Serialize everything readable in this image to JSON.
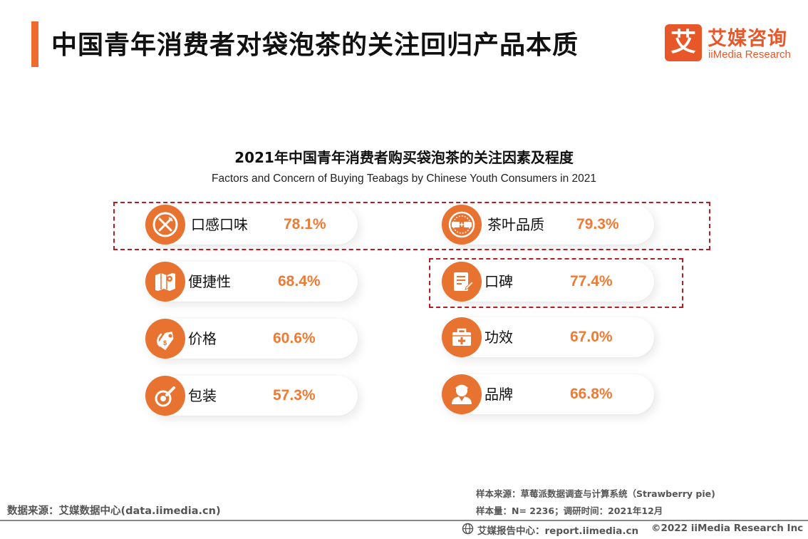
{
  "header": {
    "title": "中国青年消费者对袋泡茶的关注回归产品本质",
    "logo_mark": "艾",
    "logo_cn": "艾媒咨询",
    "logo_en": "iiMedia Research"
  },
  "subtitle": {
    "cn": "2021年中国青年消费者购买袋泡茶的关注因素及程度",
    "en": "Factors and Concern of Buying Teabags by Chinese Youth Consumers in 2021"
  },
  "factors": [
    {
      "label": "口感口味",
      "value": "78.1%",
      "icon": "fork-knife-icon"
    },
    {
      "label": "茶叶品质",
      "value": "79.3%",
      "icon": "quality-seal-icon"
    },
    {
      "label": "便捷性",
      "value": "68.4%",
      "icon": "map-icon"
    },
    {
      "label": "口碑",
      "value": "77.4%",
      "icon": "review-note-icon"
    },
    {
      "label": "价格",
      "value": "60.6%",
      "icon": "price-tag-icon"
    },
    {
      "label": "功效",
      "value": "67.0%",
      "icon": "medical-kit-icon"
    },
    {
      "label": "包装",
      "value": "57.3%",
      "icon": "package-icon"
    },
    {
      "label": "品牌",
      "value": "66.8%",
      "icon": "brand-person-icon"
    }
  ],
  "colors": {
    "accent": "#EE6C2D",
    "icon_bg": "#E8722F",
    "value_text": "#EE7A34",
    "highlight_border": "#B21E23"
  },
  "footer": {
    "data_source": "数据来源：艾媒数据中心(data.iimedia.cn)",
    "sample_source": "样本来源：草莓派数据调查与计算系统（Strawberry  pie)",
    "sample_size": "样本量：N= 2236；调研时间：2021年12月",
    "report_center": "艾媒报告中心：report.iimedia.cn",
    "copyright": "©2022  iiMedia Research  Inc"
  }
}
